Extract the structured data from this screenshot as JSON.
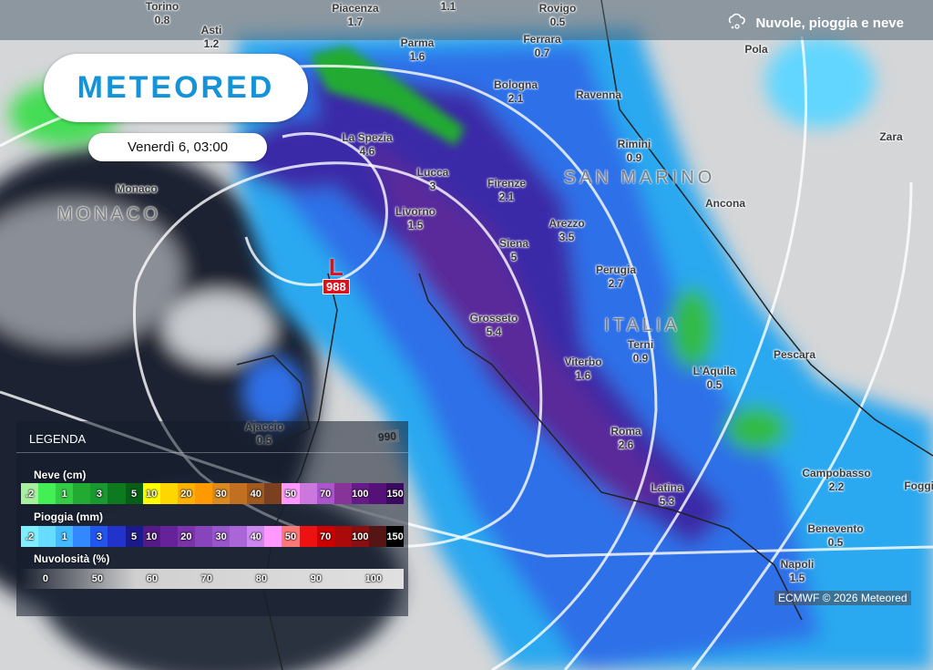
{
  "header": {
    "layer_title": "Nuvole, pioggia e neve",
    "layer_icon": "cloud-rain-snow-icon"
  },
  "brand": {
    "logo_text": "METEORED"
  },
  "datetime": "Venerdì 6, 03:00",
  "cities": [
    {
      "name": "Torino",
      "value": "0.8"
    },
    {
      "name": "Piacenza",
      "value": "1.7"
    },
    {
      "name": "",
      "value": "1.1"
    },
    {
      "name": "Rovigo",
      "value": "0.5"
    },
    {
      "name": "Asti",
      "value": "1.2"
    },
    {
      "name": "Parma",
      "value": "1.6"
    },
    {
      "name": "Ferrara",
      "value": "0.7"
    },
    {
      "name": "Pola",
      "value": ""
    },
    {
      "name": "Bologna",
      "value": "2.1"
    },
    {
      "name": "Ravenna",
      "value": ""
    },
    {
      "name": "Zara",
      "value": ""
    },
    {
      "name": "La Spezia",
      "value": "4.6"
    },
    {
      "name": "Rimini",
      "value": "0.9"
    },
    {
      "name": "Lucca",
      "value": "3"
    },
    {
      "name": "Firenze",
      "value": "2.1"
    },
    {
      "name": "Monaco",
      "value": ""
    },
    {
      "name": "Ancona",
      "value": ""
    },
    {
      "name": "Livorno",
      "value": "1.5"
    },
    {
      "name": "Arezzo",
      "value": "3.5"
    },
    {
      "name": "Siena",
      "value": "5"
    },
    {
      "name": "Perugia",
      "value": "2.7"
    },
    {
      "name": "Grosseto",
      "value": "5.4"
    },
    {
      "name": "Terni",
      "value": "0.9"
    },
    {
      "name": "Viterbo",
      "value": "1.6"
    },
    {
      "name": "Pescara",
      "value": ""
    },
    {
      "name": "L'Aquila",
      "value": "0.5"
    },
    {
      "name": "Ajaccio",
      "value": "0.5"
    },
    {
      "name": "Roma",
      "value": "2.6"
    },
    {
      "name": "Campobasso",
      "value": "2.2"
    },
    {
      "name": "Latina",
      "value": "5.3"
    },
    {
      "name": "Foggia",
      "value": ""
    },
    {
      "name": "Benevento",
      "value": "0.5"
    },
    {
      "name": "Napoli",
      "value": "1.5"
    }
  ],
  "countries": [
    "MONACO",
    "SAN MARINO",
    "ITALIA"
  ],
  "pressure_low": {
    "symbol": "L",
    "value": "988"
  },
  "isobar_label": "990",
  "legend": {
    "title": "LEGENDA",
    "snow": {
      "label": "Neve (cm)",
      "colors": [
        "#a8f0a0",
        "#44ee55",
        "#33cc44",
        "#22aa33",
        "#1a9930",
        "#0d7a20",
        "#075e15",
        "#ffff00",
        "#ffd700",
        "#ffb000",
        "#ff9900",
        "#d98a20",
        "#c07020",
        "#a05a20",
        "#7a4020",
        "#ff99ff",
        "#cc77dd",
        "#aa55cc",
        "#883399",
        "#661a88",
        "#551177",
        "#3a0a5e"
      ],
      "labels": [
        ".2",
        "",
        "1",
        "",
        "3",
        "",
        "5",
        "10",
        "",
        "20",
        "",
        "30",
        "",
        "40",
        "",
        "50",
        "",
        "70",
        "",
        "100",
        "",
        "150"
      ]
    },
    "rain": {
      "label": "Pioggia (mm)",
      "colors": [
        "#7fefff",
        "#66ddff",
        "#44bbff",
        "#3388ff",
        "#2255ee",
        "#2233cc",
        "#1a1a8a",
        "#551a88",
        "#662299",
        "#7a33a8",
        "#8844bb",
        "#9955cc",
        "#aa66d6",
        "#cc88ee",
        "#ff99ff",
        "#ff7777",
        "#ee1111",
        "#cc0000",
        "#aa0a0a",
        "#881010",
        "#551515",
        "#000000"
      ],
      "labels": [
        ".2",
        "",
        "1",
        "",
        "3",
        "",
        "5",
        "10",
        "",
        "20",
        "",
        "30",
        "",
        "40",
        "",
        "50",
        "",
        "70",
        "",
        "100",
        "",
        "150"
      ]
    },
    "cloud": {
      "label": "Nuvolosità (%)",
      "labels": [
        "0",
        "50",
        "60",
        "70",
        "80",
        "90",
        "100"
      ]
    }
  },
  "credit": "ECMWF © 2026 Meteored"
}
